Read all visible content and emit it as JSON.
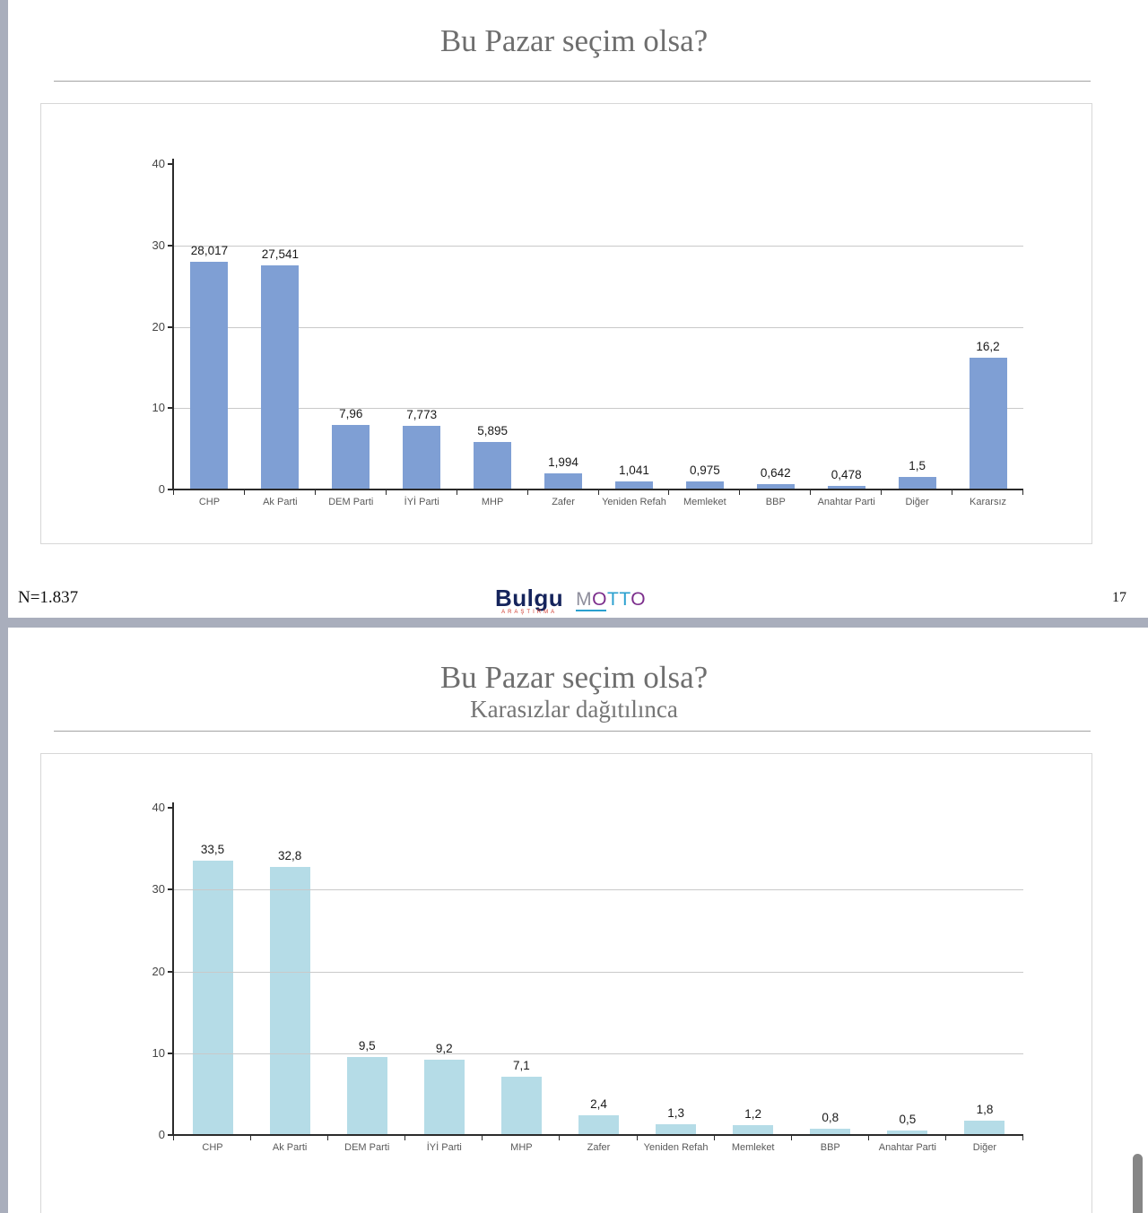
{
  "page": {
    "page_number": "17",
    "n_label": "N=1.837"
  },
  "slide1": {
    "title": "Bu Pazar seçim olsa?"
  },
  "slide2": {
    "title": "Bu Pazar seçim olsa?",
    "subtitle": "Karasızlar dağıtılınca"
  },
  "logos": {
    "bulgu": "Bulgu",
    "bulgu_sub": "ARAŞTIRMA",
    "motto_letters": [
      {
        "ch": "M",
        "color": "#8e8e9c"
      },
      {
        "ch": "O",
        "color": "#7c2e8c"
      },
      {
        "ch": "T",
        "color": "#2aa0cf"
      },
      {
        "ch": "T",
        "color": "#2aa0cf"
      },
      {
        "ch": "O",
        "color": "#7c2e8c"
      }
    ]
  },
  "chart_data": [
    {
      "type": "bar",
      "title": "Bu Pazar seçim olsa?",
      "categories": [
        "CHP",
        "Ak Parti",
        "DEM Parti",
        "İYİ Parti",
        "MHP",
        "Zafer",
        "Yeniden Refah",
        "Memleket",
        "BBP",
        "Anahtar Parti",
        "Diğer",
        "Kararsız"
      ],
      "values": [
        28.017,
        27.541,
        7.96,
        7.773,
        5.895,
        1.994,
        1.041,
        0.975,
        0.642,
        0.478,
        1.5,
        16.2
      ],
      "value_labels": [
        "28,017",
        "27,541",
        "7,96",
        "7,773",
        "5,895",
        "1,994",
        "1,041",
        "0,975",
        "0,642",
        "0,478",
        "1,5",
        "16,2"
      ],
      "xlabel": "",
      "ylabel": "",
      "ylim": [
        0,
        40
      ],
      "yticks": [
        0,
        10,
        20,
        30,
        40
      ],
      "grid": "horizontal",
      "legend": "none",
      "bar_color": "#7f9fd4"
    },
    {
      "type": "bar",
      "title": "Bu Pazar seçim olsa?",
      "subtitle": "Karasızlar dağıtılınca",
      "categories": [
        "CHP",
        "Ak Parti",
        "DEM Parti",
        "İYİ Parti",
        "MHP",
        "Zafer",
        "Yeniden Refah",
        "Memleket",
        "BBP",
        "Anahtar Parti",
        "Diğer"
      ],
      "values": [
        33.5,
        32.8,
        9.5,
        9.2,
        7.1,
        2.4,
        1.3,
        1.2,
        0.8,
        0.5,
        1.8
      ],
      "value_labels": [
        "33,5",
        "32,8",
        "9,5",
        "9,2",
        "7,1",
        "2,4",
        "1,3",
        "1,2",
        "0,8",
        "0,5",
        "1,8"
      ],
      "xlabel": "",
      "ylabel": "",
      "ylim": [
        0,
        40
      ],
      "yticks": [
        0,
        10,
        20,
        30,
        40
      ],
      "grid": "horizontal",
      "legend": "none",
      "bar_color": "#b5dce7"
    }
  ]
}
